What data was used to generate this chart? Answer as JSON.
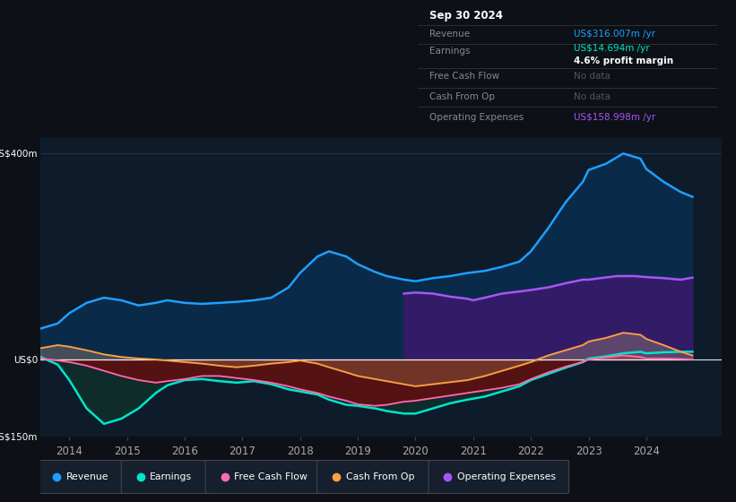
{
  "bg_color": "#0d1117",
  "plot_bg_color": "#0d1b2a",
  "ylim": [
    -150,
    430
  ],
  "xlim": [
    2013.5,
    2025.3
  ],
  "x_ticks": [
    2014,
    2015,
    2016,
    2017,
    2018,
    2019,
    2020,
    2021,
    2022,
    2023,
    2024
  ],
  "revenue_color": "#1e9fff",
  "earnings_color": "#00e5cc",
  "fcf_color": "#ff69b4",
  "cashfromop_color": "#ffa040",
  "opex_color": "#a855f7",
  "info_box": {
    "title": "Sep 30 2024",
    "revenue_label": "Revenue",
    "revenue_val": "US$316.007m /yr",
    "earnings_label": "Earnings",
    "earnings_val": "US$14.694m /yr",
    "profit_margin": "4.6% profit margin",
    "fcf_label": "Free Cash Flow",
    "fcf_val": "No data",
    "cop_label": "Cash From Op",
    "cop_val": "No data",
    "opex_label": "Operating Expenses",
    "opex_val": "US$158.998m /yr"
  },
  "revenue_x": [
    2013.5,
    2013.8,
    2014.0,
    2014.3,
    2014.6,
    2014.9,
    2015.2,
    2015.5,
    2015.7,
    2016.0,
    2016.3,
    2016.6,
    2016.9,
    2017.2,
    2017.5,
    2017.8,
    2018.0,
    2018.3,
    2018.5,
    2018.8,
    2019.0,
    2019.3,
    2019.5,
    2019.8,
    2020.0,
    2020.3,
    2020.6,
    2020.9,
    2021.2,
    2021.5,
    2021.8,
    2022.0,
    2022.3,
    2022.6,
    2022.9,
    2023.0,
    2023.3,
    2023.6,
    2023.9,
    2024.0,
    2024.3,
    2024.6,
    2024.8
  ],
  "revenue_y": [
    60,
    70,
    90,
    110,
    120,
    115,
    105,
    110,
    115,
    110,
    108,
    110,
    112,
    115,
    120,
    140,
    168,
    200,
    210,
    200,
    185,
    170,
    162,
    155,
    152,
    158,
    162,
    168,
    172,
    180,
    190,
    210,
    255,
    305,
    345,
    368,
    380,
    400,
    390,
    370,
    345,
    325,
    316
  ],
  "earnings_x": [
    2013.5,
    2013.8,
    2014.0,
    2014.3,
    2014.6,
    2014.9,
    2015.2,
    2015.5,
    2015.7,
    2016.0,
    2016.3,
    2016.6,
    2016.9,
    2017.2,
    2017.5,
    2017.8,
    2018.0,
    2018.3,
    2018.5,
    2018.8,
    2019.0,
    2019.3,
    2019.5,
    2019.8,
    2020.0,
    2020.3,
    2020.6,
    2020.9,
    2021.2,
    2021.5,
    2021.8,
    2022.0,
    2022.3,
    2022.6,
    2022.9,
    2023.0,
    2023.3,
    2023.6,
    2023.9,
    2024.0,
    2024.3,
    2024.6,
    2024.8
  ],
  "earnings_y": [
    5,
    -10,
    -40,
    -95,
    -125,
    -115,
    -95,
    -65,
    -50,
    -40,
    -38,
    -42,
    -45,
    -42,
    -48,
    -58,
    -62,
    -68,
    -78,
    -88,
    -90,
    -95,
    -100,
    -105,
    -105,
    -95,
    -85,
    -78,
    -72,
    -62,
    -52,
    -40,
    -28,
    -16,
    -5,
    2,
    6,
    12,
    15,
    12,
    14,
    15,
    15
  ],
  "fcf_x": [
    2013.5,
    2013.8,
    2014.0,
    2014.3,
    2014.6,
    2014.9,
    2015.2,
    2015.5,
    2015.7,
    2016.0,
    2016.3,
    2016.6,
    2016.9,
    2017.2,
    2017.5,
    2017.8,
    2018.0,
    2018.3,
    2018.5,
    2018.8,
    2019.0,
    2019.3,
    2019.5,
    2019.8,
    2020.0,
    2020.3,
    2020.6,
    2020.9,
    2021.2,
    2021.5,
    2021.8,
    2022.0,
    2022.3,
    2022.6,
    2022.9,
    2023.0,
    2023.3,
    2023.6,
    2023.9,
    2024.0,
    2024.3,
    2024.6,
    2024.8
  ],
  "fcf_y": [
    2,
    -2,
    -5,
    -12,
    -22,
    -32,
    -40,
    -45,
    -42,
    -38,
    -32,
    -32,
    -36,
    -40,
    -45,
    -52,
    -58,
    -65,
    -72,
    -80,
    -87,
    -90,
    -88,
    -82,
    -80,
    -75,
    -70,
    -65,
    -60,
    -55,
    -48,
    -38,
    -25,
    -14,
    -5,
    0,
    4,
    8,
    5,
    2,
    2,
    1,
    0
  ],
  "cashfromop_x": [
    2013.5,
    2013.8,
    2014.0,
    2014.3,
    2014.6,
    2014.9,
    2015.2,
    2015.5,
    2015.7,
    2016.0,
    2016.3,
    2016.6,
    2016.9,
    2017.2,
    2017.5,
    2017.8,
    2018.0,
    2018.3,
    2018.5,
    2018.8,
    2019.0,
    2019.3,
    2019.5,
    2019.8,
    2020.0,
    2020.3,
    2020.6,
    2020.9,
    2021.2,
    2021.5,
    2021.8,
    2022.0,
    2022.3,
    2022.6,
    2022.9,
    2023.0,
    2023.3,
    2023.6,
    2023.9,
    2024.0,
    2024.3,
    2024.6,
    2024.8
  ],
  "cashfromop_y": [
    22,
    28,
    25,
    18,
    10,
    5,
    2,
    0,
    -2,
    -5,
    -8,
    -12,
    -15,
    -12,
    -8,
    -5,
    -2,
    -8,
    -15,
    -25,
    -32,
    -38,
    -42,
    -48,
    -52,
    -48,
    -44,
    -40,
    -32,
    -22,
    -12,
    -5,
    8,
    18,
    28,
    35,
    42,
    52,
    48,
    40,
    28,
    15,
    8
  ],
  "opex_x": [
    2019.8,
    2020.0,
    2020.3,
    2020.6,
    2020.9,
    2021.0,
    2021.2,
    2021.5,
    2021.8,
    2022.0,
    2022.3,
    2022.6,
    2022.9,
    2023.0,
    2023.2,
    2023.5,
    2023.8,
    2024.0,
    2024.3,
    2024.6,
    2024.8
  ],
  "opex_y": [
    128,
    130,
    128,
    122,
    118,
    115,
    120,
    128,
    132,
    135,
    140,
    148,
    155,
    155,
    158,
    162,
    162,
    160,
    158,
    155,
    159
  ]
}
